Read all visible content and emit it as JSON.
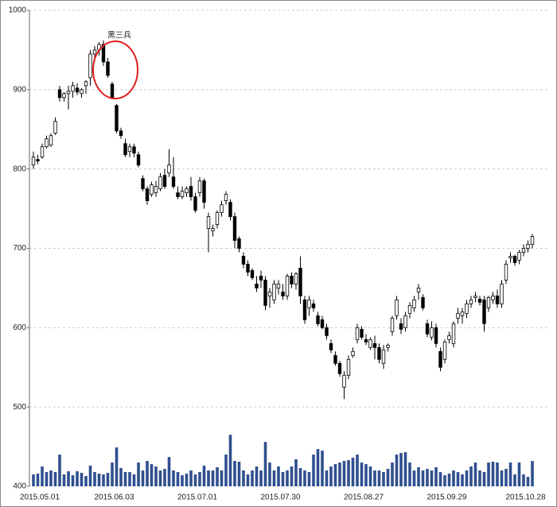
{
  "chart_data": {
    "type": "candlestick",
    "annotation": "黑三兵",
    "categories": [
      "2015.05.01",
      null,
      null,
      null,
      null,
      null,
      null,
      null,
      null,
      null,
      null,
      null,
      null,
      null,
      null,
      null,
      null,
      "2015.06.03",
      null,
      null,
      null,
      null,
      null,
      null,
      null,
      null,
      null,
      null,
      null,
      null,
      null,
      null,
      null,
      null,
      null,
      null,
      "2015.07.01",
      null,
      null,
      null,
      null,
      null,
      null,
      null,
      null,
      null,
      null,
      null,
      null,
      null,
      null,
      null,
      null,
      null,
      null,
      "2015.07.30",
      null,
      null,
      null,
      null,
      null,
      null,
      null,
      null,
      null,
      null,
      null,
      null,
      null,
      null,
      null,
      null,
      null,
      null,
      "2015.08.27",
      null,
      null,
      null,
      null,
      null,
      null,
      null,
      null,
      null,
      null,
      null,
      null,
      null,
      null,
      null,
      null,
      null,
      null,
      "2015.09.29",
      null,
      null,
      null,
      null,
      null,
      null,
      null,
      null,
      null,
      null,
      null,
      null,
      null,
      null,
      null,
      null,
      null,
      "2015.10.28",
      null,
      null,
      null
    ],
    "open": [
      805,
      812,
      815,
      828,
      830,
      845,
      900,
      890,
      895,
      898,
      902,
      895,
      905,
      915,
      945,
      950,
      957,
      935,
      907,
      880,
      848,
      832,
      822,
      828,
      818,
      788,
      775,
      768,
      770,
      775,
      792,
      795,
      790,
      770,
      765,
      770,
      778,
      765,
      770,
      785,
      725,
      722,
      730,
      745,
      760,
      758,
      740,
      712,
      690,
      680,
      672,
      655,
      665,
      660,
      640,
      635,
      650,
      645,
      640,
      665,
      655,
      675,
      635,
      625,
      630,
      615,
      610,
      600,
      580,
      565,
      555,
      525,
      540,
      565,
      585,
      598,
      585,
      575,
      580,
      575,
      555,
      575,
      595,
      615,
      605,
      600,
      618,
      625,
      645,
      638,
      605,
      588,
      600,
      570,
      560,
      585,
      580,
      612,
      615,
      618,
      630,
      638,
      636,
      635,
      625,
      635,
      640,
      630,
      660,
      688,
      690,
      685,
      695,
      700,
      705
    ],
    "high": [
      822,
      818,
      832,
      842,
      845,
      865,
      905,
      897,
      905,
      910,
      908,
      902,
      912,
      950,
      955,
      960,
      962,
      940,
      910,
      882,
      852,
      838,
      832,
      832,
      822,
      792,
      778,
      784,
      785,
      795,
      800,
      825,
      815,
      778,
      778,
      778,
      790,
      770,
      790,
      788,
      745,
      730,
      748,
      760,
      772,
      762,
      745,
      715,
      695,
      685,
      675,
      665,
      672,
      665,
      650,
      660,
      660,
      655,
      668,
      670,
      670,
      690,
      640,
      640,
      635,
      620,
      615,
      605,
      585,
      570,
      558,
      545,
      565,
      575,
      605,
      602,
      592,
      588,
      590,
      580,
      578,
      580,
      615,
      640,
      612,
      620,
      632,
      640,
      655,
      642,
      610,
      608,
      605,
      575,
      585,
      595,
      608,
      625,
      625,
      635,
      640,
      645,
      640,
      640,
      640,
      645,
      648,
      660,
      685,
      695,
      692,
      698,
      705,
      710,
      718
    ],
    "low": [
      800,
      806,
      813,
      826,
      828,
      843,
      885,
      885,
      875,
      890,
      893,
      890,
      895,
      905,
      935,
      943,
      930,
      915,
      888,
      845,
      838,
      815,
      815,
      815,
      802,
      772,
      755,
      765,
      765,
      772,
      775,
      790,
      775,
      762,
      762,
      765,
      760,
      745,
      765,
      750,
      695,
      715,
      725,
      740,
      755,
      735,
      700,
      695,
      675,
      665,
      660,
      645,
      650,
      622,
      625,
      630,
      642,
      635,
      635,
      650,
      648,
      630,
      605,
      615,
      620,
      602,
      598,
      585,
      568,
      552,
      538,
      510,
      535,
      562,
      580,
      585,
      578,
      572,
      560,
      555,
      548,
      570,
      590,
      610,
      592,
      595,
      612,
      620,
      635,
      622,
      588,
      584,
      575,
      545,
      555,
      580,
      575,
      605,
      605,
      612,
      625,
      632,
      628,
      595,
      620,
      630,
      625,
      625,
      655,
      682,
      678,
      680,
      690,
      695,
      700
    ],
    "close": [
      815,
      810,
      828,
      838,
      842,
      860,
      890,
      895,
      898,
      905,
      897,
      900,
      910,
      945,
      950,
      957,
      935,
      918,
      890,
      848,
      842,
      818,
      828,
      820,
      805,
      775,
      760,
      780,
      778,
      790,
      778,
      805,
      778,
      765,
      772,
      775,
      765,
      748,
      785,
      758,
      740,
      725,
      745,
      755,
      768,
      740,
      710,
      700,
      680,
      670,
      663,
      650,
      660,
      628,
      645,
      655,
      655,
      640,
      665,
      655,
      668,
      640,
      610,
      635,
      625,
      605,
      600,
      590,
      572,
      555,
      542,
      540,
      560,
      570,
      600,
      588,
      582,
      585,
      575,
      560,
      572,
      578,
      612,
      635,
      598,
      615,
      628,
      635,
      650,
      625,
      592,
      600,
      580,
      550,
      582,
      590,
      605,
      618,
      620,
      630,
      635,
      640,
      632,
      605,
      638,
      640,
      630,
      655,
      680,
      690,
      682,
      695,
      700,
      705,
      715
    ],
    "volume": [
      415,
      416,
      425,
      418,
      420,
      418,
      440,
      415,
      419,
      414,
      419,
      417,
      413,
      426,
      418,
      416,
      415,
      417,
      430,
      449,
      423,
      418,
      418,
      415,
      430,
      420,
      432,
      428,
      425,
      420,
      422,
      437,
      420,
      418,
      414,
      416,
      420,
      415,
      418,
      426,
      420,
      420,
      424,
      420,
      440,
      465,
      432,
      431,
      420,
      415,
      420,
      425,
      420,
      456,
      430,
      420,
      425,
      418,
      420,
      425,
      434,
      423,
      420,
      418,
      440,
      447,
      445,
      420,
      425,
      428,
      430,
      432,
      433,
      436,
      440,
      430,
      428,
      425,
      420,
      420,
      418,
      422,
      430,
      440,
      442,
      443,
      430,
      420,
      424,
      420,
      422,
      420,
      424,
      418,
      414,
      416,
      420,
      418,
      415,
      420,
      425,
      430,
      420,
      418,
      430,
      431,
      430,
      420,
      422,
      430,
      415,
      430,
      415,
      412,
      432
    ],
    "up_color": "#ffffff",
    "down_color": "#000000",
    "volume_color": "#2f4f8f",
    "ylim": [
      400,
      1000
    ],
    "yticks": [
      400,
      500,
      600,
      700,
      800,
      900,
      1000
    ],
    "grid": true
  }
}
